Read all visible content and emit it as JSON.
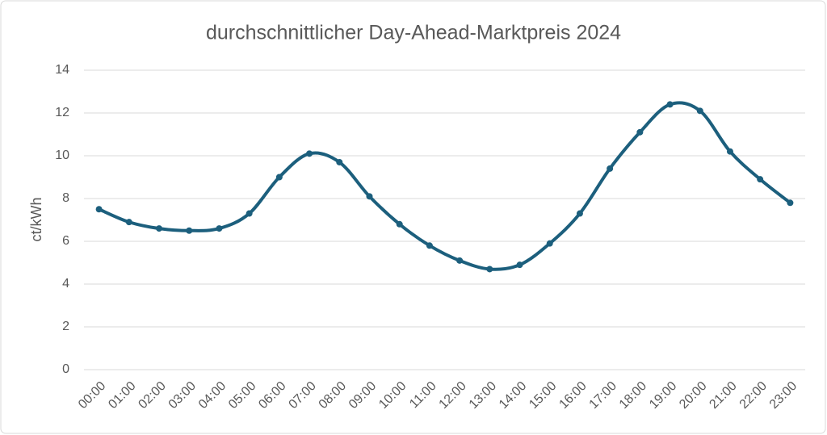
{
  "chart_data": {
    "type": "line",
    "title": "durchschnittlicher Day-Ahead-Marktpreis 2024",
    "y_label": "ct/kWh",
    "categories": [
      "00:00",
      "01:00",
      "02:00",
      "03:00",
      "04:00",
      "05:00",
      "06:00",
      "07:00",
      "08:00",
      "09:00",
      "10:00",
      "11:00",
      "12:00",
      "13:00",
      "14:00",
      "15:00",
      "16:00",
      "17:00",
      "18:00",
      "19:00",
      "20:00",
      "21:00",
      "22:00",
      "23:00"
    ],
    "series": [
      {
        "name": "ct/kWh",
        "color": "#1c5f7d",
        "values": [
          7.5,
          6.9,
          6.6,
          6.5,
          6.6,
          7.3,
          9.0,
          10.1,
          9.7,
          8.1,
          6.8,
          5.8,
          5.1,
          4.7,
          4.9,
          5.9,
          7.3,
          9.4,
          11.1,
          12.4,
          12.1,
          10.2,
          8.9,
          7.8
        ]
      }
    ],
    "ylim": [
      0,
      14
    ],
    "yticks": [
      0,
      2,
      4,
      6,
      8,
      10,
      12,
      14
    ],
    "grid": true
  }
}
